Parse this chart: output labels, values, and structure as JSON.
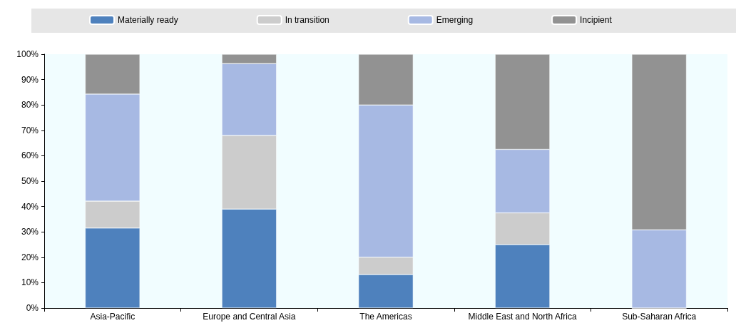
{
  "chart_data": {
    "type": "bar",
    "stacked": true,
    "legend": "top",
    "grid": false,
    "categories": [
      "Asia-Pacific",
      "Europe and Central Asia",
      "The Americas",
      "Middle East and North Africa",
      "Sub-Saharan Africa"
    ],
    "series": [
      {
        "name": "Materially ready",
        "color": "#4e81bd",
        "values": [
          31.5,
          39,
          13.2,
          25,
          0
        ]
      },
      {
        "name": "In transition",
        "color": "#cccccc",
        "values": [
          10.6,
          29,
          6.8,
          12.5,
          0
        ]
      },
      {
        "name": "Emerging",
        "color": "#a7b9e3",
        "values": [
          42.2,
          28.3,
          60,
          25,
          30.8
        ]
      },
      {
        "name": "Incipient",
        "color": "#929292",
        "values": [
          15.7,
          3.7,
          20,
          37.5,
          69.2
        ]
      }
    ],
    "ylim": [
      0,
      100
    ],
    "yticks": [
      {
        "value": 0,
        "label": "0%"
      },
      {
        "value": 10,
        "label": "10%"
      },
      {
        "value": 20,
        "label": "20%"
      },
      {
        "value": 30,
        "label": "30%"
      },
      {
        "value": 40,
        "label": "40%"
      },
      {
        "value": 50,
        "label": "50%"
      },
      {
        "value": 60,
        "label": "60%"
      },
      {
        "value": 70,
        "label": "70%"
      },
      {
        "value": 80,
        "label": "80%"
      },
      {
        "value": 90,
        "label": "90%"
      },
      {
        "value": 100,
        "label": "100%"
      }
    ]
  }
}
